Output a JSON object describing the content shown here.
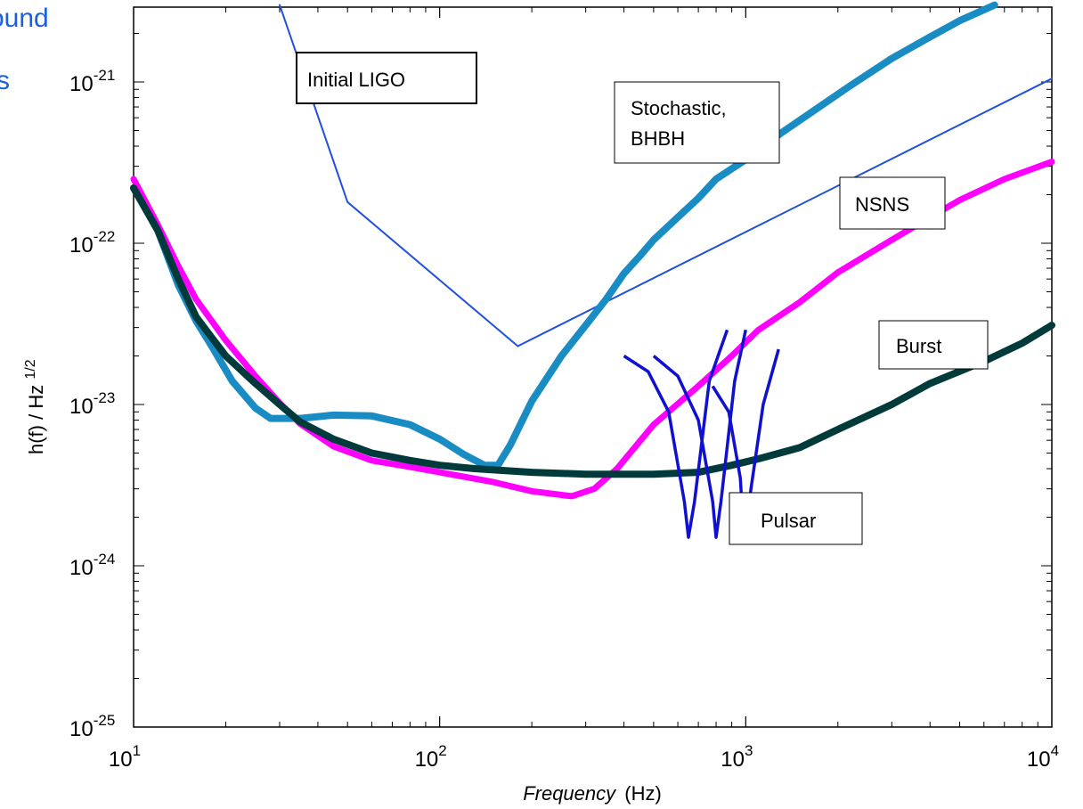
{
  "chart_data": {
    "type": "line",
    "xscale": "log",
    "yscale": "log",
    "xlim": [
      10,
      10000
    ],
    "ylim": [
      1e-25,
      3e-21
    ],
    "xlabel": "Frequency (Hz)",
    "xlabel_main": "Frequency",
    "xlabel_unit": "(Hz)",
    "ylabel": "h(f) / Hz^1/2",
    "ylabel_main": "h(f) / Hz",
    "ylabel_exp": "1/2",
    "x_ticks": [
      {
        "base": "10",
        "exp": "1"
      },
      {
        "base": "10",
        "exp": "2"
      },
      {
        "base": "10",
        "exp": "3"
      },
      {
        "base": "10",
        "exp": "4"
      }
    ],
    "y_ticks": [
      {
        "base": "10",
        "exp": "-25"
      },
      {
        "base": "10",
        "exp": "-24"
      },
      {
        "base": "10",
        "exp": "-23"
      },
      {
        "base": "10",
        "exp": "-22"
      },
      {
        "base": "10",
        "exp": "-21"
      }
    ],
    "corner_text": [
      "ound",
      "s"
    ],
    "grid": false,
    "series": [
      {
        "name": "Initial LIGO",
        "color": "#2050e0",
        "width": 2,
        "x": [
          30,
          50,
          180,
          10000
        ],
        "y": [
          3e-21,
          1.8e-22,
          2.3e-23,
          1.05e-21
        ]
      },
      {
        "name": "Stochastic, BHBH",
        "color": "#1a8cc4",
        "width": 8,
        "x": [
          10,
          12,
          14,
          16,
          18,
          21,
          25,
          28,
          35,
          45,
          60,
          80,
          100,
          120,
          140,
          155,
          170,
          200,
          250,
          300,
          350,
          400,
          450,
          500,
          600,
          700,
          800,
          1000,
          1300,
          1700,
          2200,
          3000,
          4000,
          5000,
          6500
        ],
        "y": [
          2.2e-22,
          1.2e-22,
          5.5e-23,
          3.3e-23,
          2.3e-23,
          1.4e-23,
          9.5e-24,
          8.2e-24,
          8.2e-24,
          8.6e-24,
          8.5e-24,
          7.5e-24,
          6.1e-24,
          4.9e-24,
          4.2e-24,
          4.2e-24,
          5.6e-24,
          1.05e-23,
          2e-23,
          3.1e-23,
          4.5e-23,
          6.5e-23,
          8.3e-23,
          1.05e-22,
          1.45e-22,
          1.9e-22,
          2.5e-22,
          3.3e-22,
          4.8e-22,
          6.8e-22,
          9.5e-22,
          1.4e-21,
          1.9e-21,
          2.4e-21,
          3e-21
        ]
      },
      {
        "name": "NSNS",
        "color": "#ff00ff",
        "width": 7,
        "x": [
          10,
          12,
          14,
          16,
          20,
          25,
          30,
          35,
          45,
          60,
          80,
          100,
          150,
          200,
          270,
          320,
          380,
          500,
          700,
          900,
          1100,
          1500,
          2000,
          3000,
          4000,
          5000,
          7000,
          10000
        ],
        "y": [
          2.5e-22,
          1.3e-22,
          7.2e-23,
          4.5e-23,
          2.5e-23,
          1.5e-23,
          1.02e-23,
          7.6e-24,
          5.5e-24,
          4.5e-24,
          4.1e-24,
          3.8e-24,
          3.3e-24,
          2.9e-24,
          2.7e-24,
          3e-24,
          4e-24,
          7.5e-24,
          1.3e-23,
          2e-23,
          2.9e-23,
          4.3e-23,
          6.6e-23,
          1.05e-22,
          1.45e-22,
          1.85e-22,
          2.5e-22,
          3.2e-22
        ]
      },
      {
        "name": "Burst",
        "color": "#003a3a",
        "width": 8,
        "x": [
          10,
          12,
          14,
          16,
          18,
          20,
          25,
          30,
          35,
          45,
          60,
          80,
          100,
          130,
          200,
          300,
          500,
          700,
          900,
          1100,
          1500,
          2000,
          3000,
          4000,
          6000,
          8000,
          10000
        ],
        "y": [
          2.2e-22,
          1.2e-22,
          6e-23,
          3.5e-23,
          2.6e-23,
          2e-23,
          1.35e-23,
          1e-23,
          7.8e-24,
          6.1e-24,
          5e-24,
          4.5e-24,
          4.2e-24,
          4e-24,
          3.8e-24,
          3.7e-24,
          3.7e-24,
          3.8e-24,
          4.2e-24,
          4.6e-24,
          5.4e-24,
          7e-24,
          1e-23,
          1.35e-23,
          1.85e-23,
          2.4e-23,
          3.1e-23
        ]
      }
    ],
    "pulsar": {
      "name": "Pulsar",
      "color": "#1010d0",
      "dips": [
        {
          "x": [
            400,
            480,
            560,
            630,
            650,
            680,
            760,
            870
          ],
          "y": [
            2e-23,
            1.6e-23,
            9e-24,
            2.5e-24,
            1.5e-24,
            2.5e-24,
            1.4e-23,
            2.9e-23
          ]
        },
        {
          "x": [
            500,
            600,
            700,
            780,
            800,
            830,
            920,
            1000
          ],
          "y": [
            2e-23,
            1.5e-23,
            8e-24,
            2.5e-24,
            1.5e-24,
            2.5e-24,
            1.4e-23,
            2.9e-23
          ]
        },
        {
          "x": [
            780,
            880,
            960,
            990,
            1040,
            1140,
            1280
          ],
          "y": [
            1.3e-23,
            9e-24,
            3.5e-24,
            1.4e-24,
            3e-24,
            1e-23,
            2.2e-23
          ]
        }
      ]
    },
    "annotations": [
      {
        "id": "initial-ligo",
        "lines": [
          "Initial LIGO"
        ],
        "color": "#2050e0",
        "border": 2
      },
      {
        "id": "stochastic",
        "lines": [
          "Stochastic,",
          "BHBH"
        ],
        "color": "#000000",
        "border": 1
      },
      {
        "id": "nsns",
        "lines": [
          "NSNS"
        ],
        "color": "#000000",
        "border": 1
      },
      {
        "id": "burst",
        "lines": [
          "Burst"
        ],
        "color": "#000000",
        "border": 1
      },
      {
        "id": "pulsar",
        "lines": [
          "Pulsar"
        ],
        "color": "#000000",
        "border": 1
      }
    ]
  }
}
